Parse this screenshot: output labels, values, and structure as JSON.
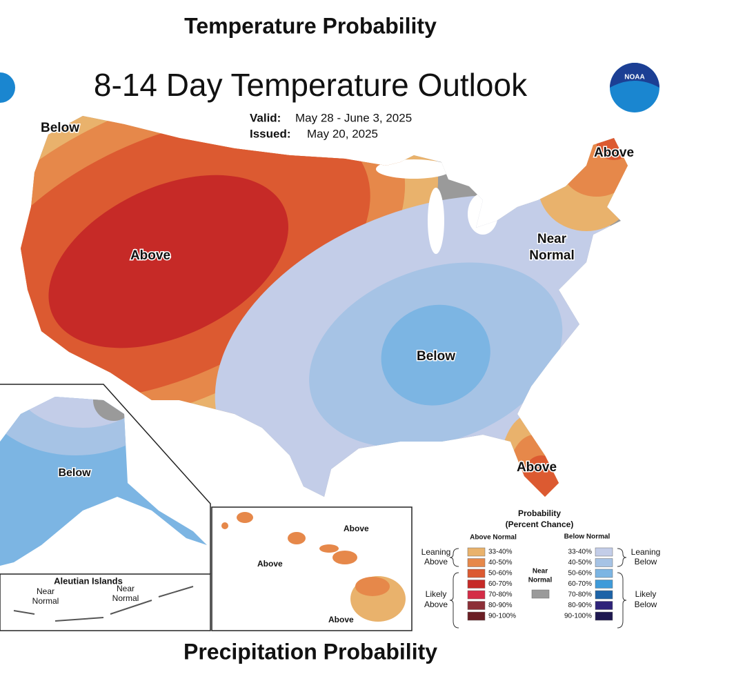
{
  "header": {
    "title": "Temperature Probability"
  },
  "map": {
    "title": "8-14 Day Temperature Outlook",
    "valid_label": "Valid:",
    "valid": "May 28 - June 3, 2025",
    "issued_label": "Issued:",
    "issued": "May 20, 2025",
    "logo": "NOAA",
    "labels": [
      "Below",
      "Above",
      "Above",
      "Near",
      "Normal",
      "Below",
      "Above",
      "Below",
      "Aleutian Islands",
      "Near",
      "Normal",
      "Near",
      "Normal",
      "Above",
      "Above",
      "Above"
    ]
  },
  "legend": {
    "title": "Probability",
    "subtitle": "(Percent Chance)",
    "above_header": "Above Normal",
    "below_header": "Below Normal",
    "leaning_above": [
      "Leaning",
      "Above"
    ],
    "likely_above": [
      "Likely",
      "Above"
    ],
    "near": [
      "Near",
      "Normal"
    ],
    "leaning_below": [
      "Leaning",
      "Below"
    ],
    "likely_below": [
      "Likely",
      "Below"
    ],
    "near_color": "#9a9a9a",
    "above": [
      {
        "label": "33-40%",
        "color": "#e9b26c"
      },
      {
        "label": "40-50%",
        "color": "#e6884a"
      },
      {
        "label": "50-60%",
        "color": "#dc5a31"
      },
      {
        "label": "60-70%",
        "color": "#c62a27"
      },
      {
        "label": "70-80%",
        "color": "#d42c46"
      },
      {
        "label": "80-90%",
        "color": "#8c2f37"
      },
      {
        "label": "90-100%",
        "color": "#6a1e24"
      }
    ],
    "below": [
      {
        "label": "33-40%",
        "color": "#c3cde8"
      },
      {
        "label": "40-50%",
        "color": "#a6c3e5"
      },
      {
        "label": "50-60%",
        "color": "#7cb5e3"
      },
      {
        "label": "60-70%",
        "color": "#3f9bd9"
      },
      {
        "label": "70-80%",
        "color": "#1d63a7"
      },
      {
        "label": "80-90%",
        "color": "#2e2379"
      },
      {
        "label": "90-100%",
        "color": "#1e1850"
      }
    ]
  },
  "footer": {
    "title": "Precipitation Probability"
  }
}
